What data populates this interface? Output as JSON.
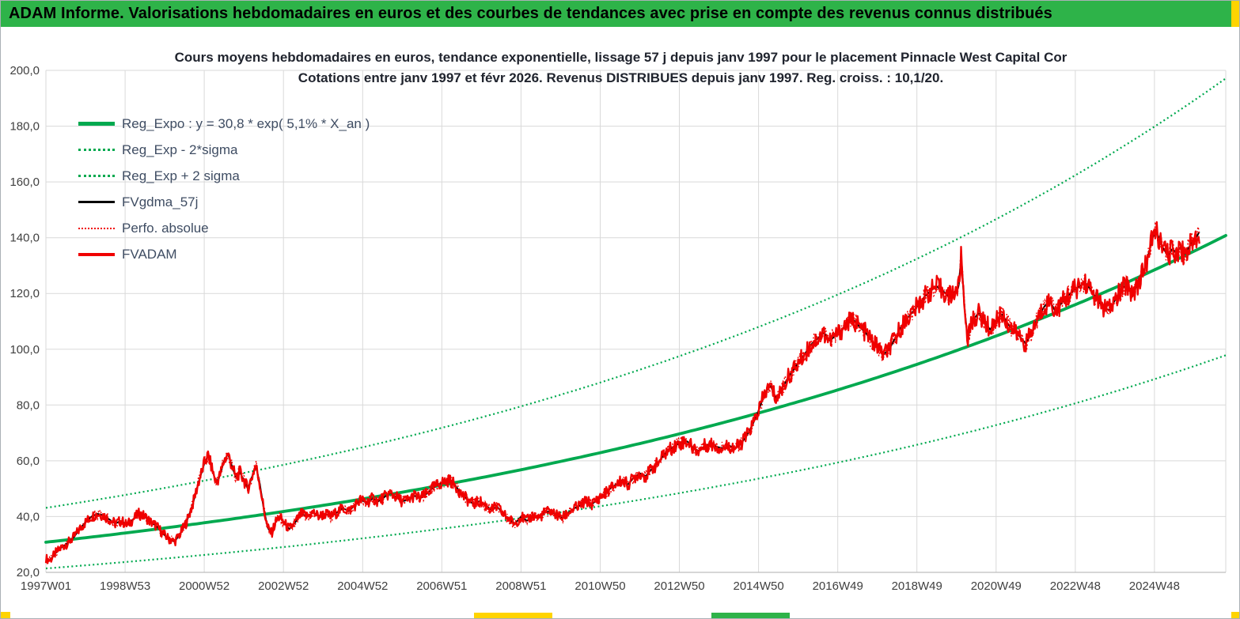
{
  "header": {
    "title": "ADAM Informe. Valorisations hebdomadaires en euros et des courbes de tendances avec prise en compte des revenus connus distribués"
  },
  "colors": {
    "banner_green": "#2eb349",
    "accent_yellow": "#ffd400",
    "green": "#00a94f",
    "red": "#f00000",
    "black": "#000000",
    "grid": "#d9d9d9",
    "axis_line": "#bdbdbd",
    "axis_text": "#404040",
    "legend_text": "#3f4d63",
    "title_text": "#20242e"
  },
  "chart_data": {
    "type": "line",
    "title": "Cours moyens hebdomadaires en euros, tendance exponentielle, lissage 57 j depuis janv 1997 pour le placement Pinnacle West Capital Cor",
    "subtitle": "Cotations entre janv 1997 et févr 2026. Revenus DISTRIBUES depuis janv 1997. Reg. croiss. : 10,1/20.",
    "x_start_year": 1997.0,
    "x_end_year": 2026.8,
    "x_tick_interval_years": 2,
    "x_tick_labels": [
      "1997W01",
      "1998W53",
      "2000W52",
      "2002W52",
      "2004W52",
      "2006W51",
      "2008W51",
      "2010W50",
      "2012W50",
      "2014W50",
      "2016W49",
      "2018W49",
      "2020W49",
      "2022W48",
      "2024W48"
    ],
    "ylim": [
      20,
      200
    ],
    "y_tick_step": 20,
    "y_tick_labels": [
      "20,0",
      "40,0",
      "60,0",
      "80,0",
      "100,0",
      "120,0",
      "140,0",
      "160,0",
      "180,0",
      "200,0"
    ],
    "grid": true,
    "legend_position": "top-left-inside",
    "legend": [
      {
        "label": "Reg_Expo : y = 30,8 * exp( 5,1% *  X_an )",
        "color": "#00a94f",
        "style": "solid",
        "weight": 5
      },
      {
        "label": "Reg_Exp - 2*sigma",
        "color": "#00a94f",
        "style": "dotted",
        "weight": 3
      },
      {
        "label": "Reg_Exp + 2 sigma",
        "color": "#00a94f",
        "style": "dotted",
        "weight": 3
      },
      {
        "label": "FVgdma_57j",
        "color": "#000000",
        "style": "solid",
        "weight": 3
      },
      {
        "label": "Perfo. absolue",
        "color": "#f00000",
        "style": "dotted",
        "weight": 2
      },
      {
        "label": "FVADAM",
        "color": "#f00000",
        "style": "solid",
        "weight": 4
      }
    ],
    "regression": {
      "formula": "y = 30,8 * exp( 5,1% *  X_an )",
      "coefficient": 30.8,
      "annual_rate_pct": 5.1,
      "band_factor_up": 1.4,
      "band_factor_down": 0.695
    },
    "series": [
      {
        "name": "FVADAM",
        "color": "#f00000",
        "style": "solid",
        "x_unit": "year",
        "points": [
          [
            1997.0,
            25.0
          ],
          [
            1997.1,
            24.3
          ],
          [
            1997.25,
            27.0
          ],
          [
            1997.4,
            29.0
          ],
          [
            1997.55,
            30.5
          ],
          [
            1997.7,
            32.5
          ],
          [
            1997.85,
            35.5
          ],
          [
            1998.0,
            38.0
          ],
          [
            1998.15,
            40.0
          ],
          [
            1998.3,
            41.0
          ],
          [
            1998.45,
            40.5
          ],
          [
            1998.6,
            39.0
          ],
          [
            1998.75,
            37.5
          ],
          [
            1998.9,
            38.5
          ],
          [
            1999.05,
            37.0
          ],
          [
            1999.2,
            39.0
          ],
          [
            1999.35,
            41.0
          ],
          [
            1999.5,
            40.0
          ],
          [
            1999.65,
            38.0
          ],
          [
            1999.8,
            36.5
          ],
          [
            1999.95,
            34.0
          ],
          [
            2000.1,
            32.0
          ],
          [
            2000.25,
            31.0
          ],
          [
            2000.4,
            34.0
          ],
          [
            2000.55,
            38.0
          ],
          [
            2000.7,
            44.0
          ],
          [
            2000.85,
            52.0
          ],
          [
            2001.0,
            59.0
          ],
          [
            2001.1,
            62.0
          ],
          [
            2001.2,
            57.0
          ],
          [
            2001.3,
            52.0
          ],
          [
            2001.4,
            55.0
          ],
          [
            2001.5,
            60.0
          ],
          [
            2001.6,
            62.5
          ],
          [
            2001.7,
            58.0
          ],
          [
            2001.8,
            54.0
          ],
          [
            2001.9,
            56.0
          ],
          [
            2002.0,
            53.0
          ],
          [
            2002.1,
            50.0
          ],
          [
            2002.2,
            54.0
          ],
          [
            2002.3,
            58.5
          ],
          [
            2002.4,
            52.0
          ],
          [
            2002.5,
            43.0
          ],
          [
            2002.6,
            36.0
          ],
          [
            2002.7,
            34.0
          ],
          [
            2002.8,
            38.0
          ],
          [
            2002.9,
            40.0
          ],
          [
            2003.0,
            38.0
          ],
          [
            2003.15,
            35.5
          ],
          [
            2003.3,
            38.0
          ],
          [
            2003.45,
            41.0
          ],
          [
            2003.6,
            40.0
          ],
          [
            2003.75,
            41.5
          ],
          [
            2003.9,
            40.0
          ],
          [
            2004.05,
            41.0
          ],
          [
            2004.2,
            40.0
          ],
          [
            2004.35,
            41.5
          ],
          [
            2004.5,
            43.0
          ],
          [
            2004.65,
            42.0
          ],
          [
            2004.8,
            44.0
          ],
          [
            2004.95,
            46.0
          ],
          [
            2005.1,
            45.0
          ],
          [
            2005.25,
            46.5
          ],
          [
            2005.4,
            45.5
          ],
          [
            2005.55,
            47.0
          ],
          [
            2005.7,
            48.5
          ],
          [
            2005.85,
            47.0
          ],
          [
            2006.0,
            45.5
          ],
          [
            2006.15,
            46.0
          ],
          [
            2006.3,
            47.5
          ],
          [
            2006.45,
            46.5
          ],
          [
            2006.6,
            48.0
          ],
          [
            2006.75,
            50.0
          ],
          [
            2006.9,
            51.5
          ],
          [
            2007.05,
            52.5
          ],
          [
            2007.2,
            53.0
          ],
          [
            2007.35,
            51.0
          ],
          [
            2007.5,
            48.0
          ],
          [
            2007.65,
            46.0
          ],
          [
            2007.8,
            44.5
          ],
          [
            2007.95,
            45.5
          ],
          [
            2008.1,
            44.0
          ],
          [
            2008.25,
            42.5
          ],
          [
            2008.4,
            43.5
          ],
          [
            2008.55,
            41.0
          ],
          [
            2008.7,
            39.0
          ],
          [
            2008.85,
            37.5
          ],
          [
            2009.0,
            40.0
          ],
          [
            2009.15,
            38.5
          ],
          [
            2009.3,
            40.5
          ],
          [
            2009.45,
            39.5
          ],
          [
            2009.6,
            41.5
          ],
          [
            2009.75,
            42.0
          ],
          [
            2009.9,
            40.5
          ],
          [
            2010.05,
            39.5
          ],
          [
            2010.2,
            41.5
          ],
          [
            2010.35,
            43.0
          ],
          [
            2010.5,
            44.0
          ],
          [
            2010.65,
            45.5
          ],
          [
            2010.8,
            44.5
          ],
          [
            2010.95,
            46.5
          ],
          [
            2011.1,
            48.0
          ],
          [
            2011.25,
            50.0
          ],
          [
            2011.4,
            51.5
          ],
          [
            2011.55,
            53.0
          ],
          [
            2011.7,
            51.5
          ],
          [
            2011.85,
            54.0
          ],
          [
            2012.0,
            55.5
          ],
          [
            2012.15,
            54.5
          ],
          [
            2012.3,
            57.0
          ],
          [
            2012.45,
            59.0
          ],
          [
            2012.6,
            62.0
          ],
          [
            2012.75,
            64.0
          ],
          [
            2012.9,
            65.5
          ],
          [
            2013.05,
            66.5
          ],
          [
            2013.2,
            67.0
          ],
          [
            2013.35,
            64.5
          ],
          [
            2013.5,
            63.5
          ],
          [
            2013.65,
            65.5
          ],
          [
            2013.8,
            66.0
          ],
          [
            2013.95,
            65.0
          ],
          [
            2014.1,
            64.5
          ],
          [
            2014.25,
            65.5
          ],
          [
            2014.4,
            64.5
          ],
          [
            2014.55,
            66.0
          ],
          [
            2014.7,
            69.0
          ],
          [
            2014.85,
            73.0
          ],
          [
            2015.0,
            78.0
          ],
          [
            2015.15,
            84.0
          ],
          [
            2015.3,
            87.0
          ],
          [
            2015.45,
            82.0
          ],
          [
            2015.6,
            86.0
          ],
          [
            2015.75,
            90.0
          ],
          [
            2015.9,
            93.0
          ],
          [
            2016.05,
            96.0
          ],
          [
            2016.2,
            99.0
          ],
          [
            2016.35,
            102.0
          ],
          [
            2016.5,
            104.0
          ],
          [
            2016.65,
            106.0
          ],
          [
            2016.8,
            103.0
          ],
          [
            2016.95,
            105.0
          ],
          [
            2017.1,
            107.0
          ],
          [
            2017.25,
            109.5
          ],
          [
            2017.4,
            110.5
          ],
          [
            2017.55,
            108.0
          ],
          [
            2017.7,
            106.0
          ],
          [
            2017.85,
            103.0
          ],
          [
            2018.0,
            101.0
          ],
          [
            2018.15,
            98.0
          ],
          [
            2018.3,
            100.0
          ],
          [
            2018.45,
            104.0
          ],
          [
            2018.6,
            108.0
          ],
          [
            2018.75,
            111.0
          ],
          [
            2018.9,
            113.5
          ],
          [
            2019.05,
            116.0
          ],
          [
            2019.2,
            119.0
          ],
          [
            2019.35,
            121.0
          ],
          [
            2019.5,
            122.5
          ],
          [
            2019.65,
            121.0
          ],
          [
            2019.8,
            119.0
          ],
          [
            2019.95,
            120.5
          ],
          [
            2020.05,
            122.0
          ],
          [
            2020.12,
            133.5
          ],
          [
            2020.2,
            115.0
          ],
          [
            2020.28,
            104.0
          ],
          [
            2020.4,
            110.0
          ],
          [
            2020.55,
            113.0
          ],
          [
            2020.7,
            110.0
          ],
          [
            2020.85,
            107.0
          ],
          [
            2021.0,
            110.5
          ],
          [
            2021.15,
            112.5
          ],
          [
            2021.3,
            109.0
          ],
          [
            2021.45,
            106.5
          ],
          [
            2021.6,
            104.5
          ],
          [
            2021.75,
            102.0
          ],
          [
            2021.9,
            106.0
          ],
          [
            2022.05,
            111.0
          ],
          [
            2022.2,
            115.0
          ],
          [
            2022.35,
            117.5
          ],
          [
            2022.5,
            113.5
          ],
          [
            2022.65,
            116.5
          ],
          [
            2022.8,
            119.0
          ],
          [
            2022.95,
            121.0
          ],
          [
            2023.1,
            122.5
          ],
          [
            2023.25,
            124.0
          ],
          [
            2023.4,
            121.0
          ],
          [
            2023.55,
            118.0
          ],
          [
            2023.7,
            115.0
          ],
          [
            2023.85,
            114.0
          ],
          [
            2024.0,
            117.5
          ],
          [
            2024.15,
            121.0
          ],
          [
            2024.3,
            123.5
          ],
          [
            2024.45,
            120.0
          ],
          [
            2024.6,
            124.0
          ],
          [
            2024.75,
            129.0
          ],
          [
            2024.85,
            134.0
          ],
          [
            2024.95,
            140.0
          ],
          [
            2025.05,
            142.5
          ],
          [
            2025.15,
            138.0
          ],
          [
            2025.25,
            135.5
          ],
          [
            2025.35,
            133.5
          ],
          [
            2025.45,
            136.0
          ],
          [
            2025.55,
            134.5
          ],
          [
            2025.65,
            136.5
          ],
          [
            2025.75,
            134.0
          ],
          [
            2025.85,
            136.0
          ],
          [
            2025.95,
            138.5
          ],
          [
            2026.05,
            140.0
          ],
          [
            2026.15,
            142.5
          ]
        ]
      },
      {
        "name": "FVgdma_57j",
        "color": "#000000",
        "style": "solid",
        "derived": "57-day smoothing of FVADAM"
      },
      {
        "name": "Perfo. absolue",
        "color": "#f00000",
        "style": "dotted",
        "derived": "coincides with FVADAM"
      },
      {
        "name": "Reg_Expo",
        "color": "#00a94f",
        "style": "solid",
        "formula": "y = 30,8 * exp( 5,1% *  X_an )"
      },
      {
        "name": "Reg_Exp - 2*sigma",
        "color": "#00a94f",
        "style": "dotted",
        "band_factor": 0.695
      },
      {
        "name": "Reg_Exp + 2 sigma",
        "color": "#00a94f",
        "style": "dotted",
        "band_factor": 1.4
      }
    ]
  }
}
